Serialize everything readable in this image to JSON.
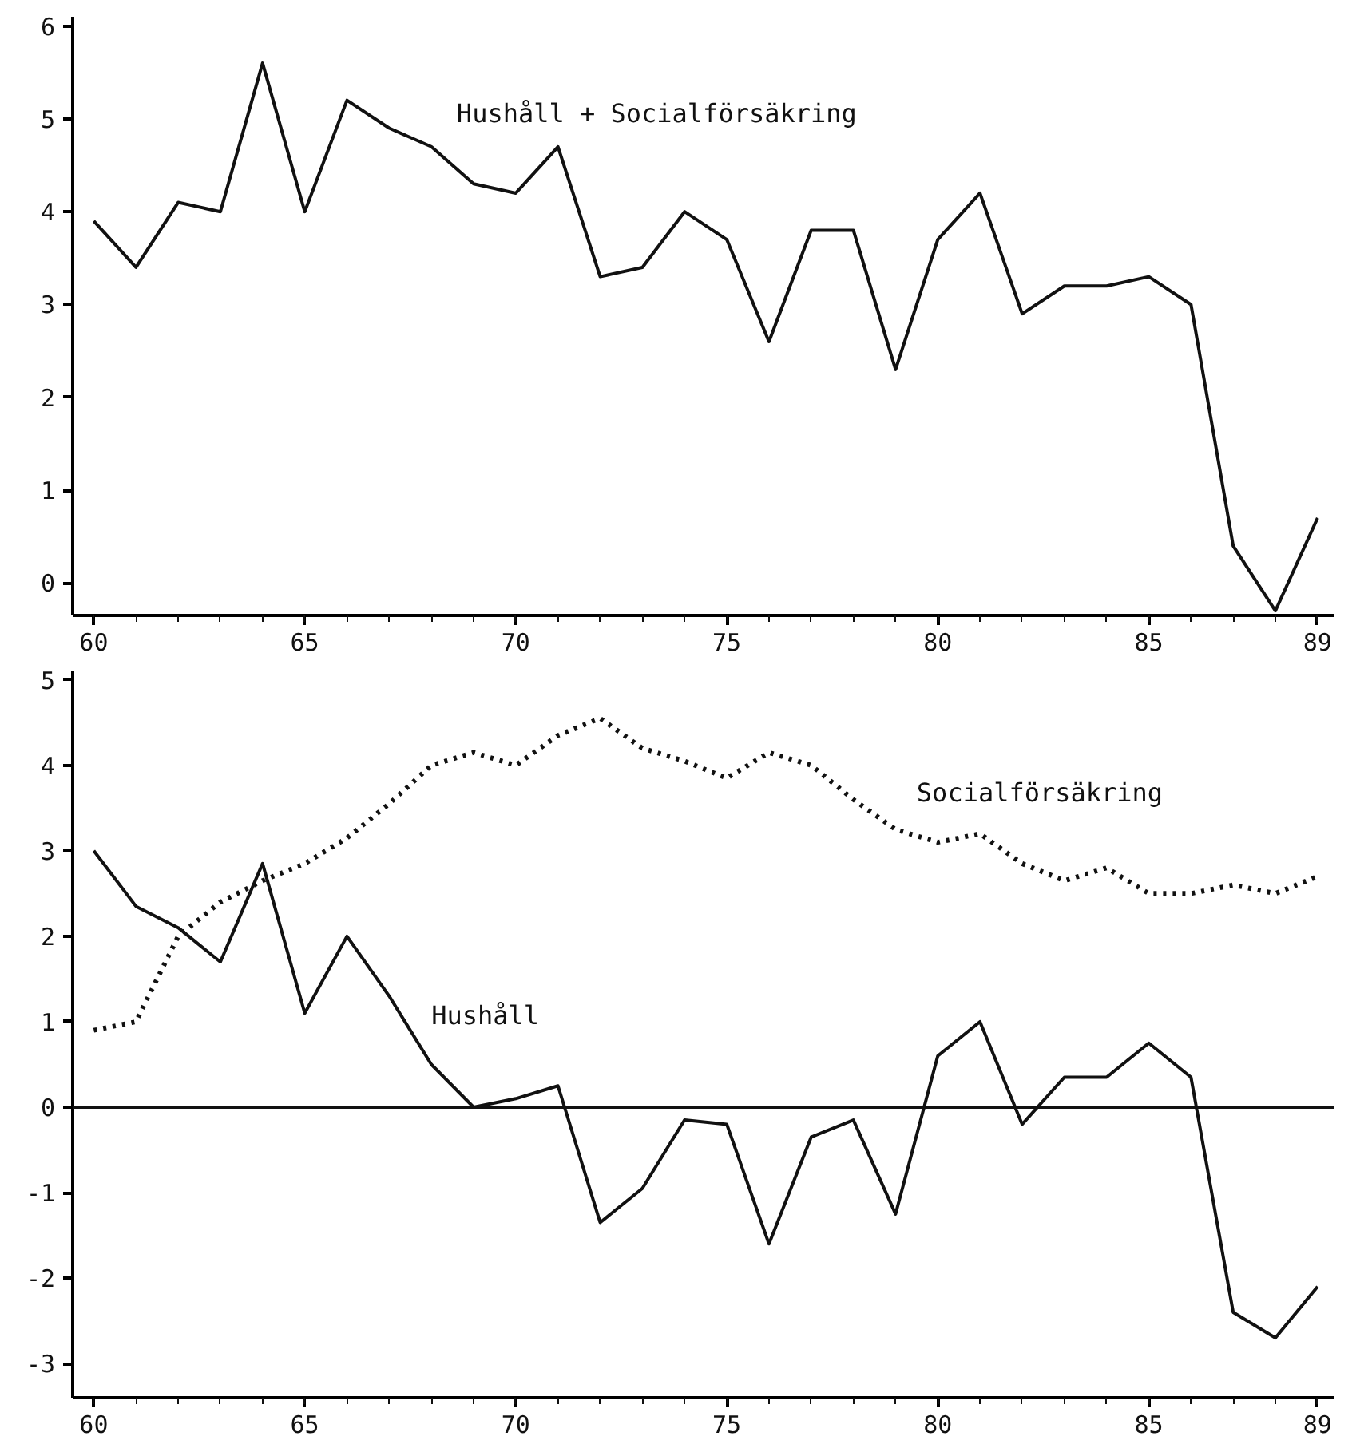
{
  "chart_data": [
    {
      "type": "line",
      "x": [
        60,
        61,
        62,
        63,
        64,
        65,
        66,
        67,
        68,
        69,
        70,
        71,
        72,
        73,
        74,
        75,
        76,
        77,
        78,
        79,
        80,
        81,
        82,
        83,
        84,
        85,
        86,
        87,
        88,
        89
      ],
      "xlim": [
        59.5,
        89.4
      ],
      "xticks": [
        60,
        65,
        70,
        75,
        80,
        85,
        89
      ],
      "ylim": [
        -0.35,
        6.1
      ],
      "yticks": [
        0,
        1,
        2,
        3,
        4,
        5,
        6
      ],
      "grid": false,
      "series": [
        {
          "name": "Hushåll + Socialförsäkring",
          "color": "#111111",
          "line_style": "solid",
          "values": [
            3.9,
            3.4,
            4.1,
            4.0,
            5.6,
            4.0,
            5.2,
            4.9,
            4.7,
            4.3,
            4.2,
            4.7,
            3.3,
            3.4,
            4.0,
            3.7,
            2.6,
            3.8,
            3.8,
            2.3,
            3.7,
            4.2,
            2.9,
            3.2,
            3.2,
            3.3,
            3.0,
            0.4,
            -0.3,
            0.7
          ]
        }
      ]
    },
    {
      "type": "line",
      "x": [
        60,
        61,
        62,
        63,
        64,
        65,
        66,
        67,
        68,
        69,
        70,
        71,
        72,
        73,
        74,
        75,
        76,
        77,
        78,
        79,
        80,
        81,
        82,
        83,
        84,
        85,
        86,
        87,
        88,
        89
      ],
      "xlim": [
        59.5,
        89.4
      ],
      "xticks": [
        60,
        65,
        70,
        75,
        80,
        85,
        89
      ],
      "ylim": [
        -3.4,
        5.1
      ],
      "yticks": [
        -3,
        -2,
        -1,
        0,
        1,
        2,
        3,
        4,
        5
      ],
      "grid": false,
      "ref_lines": [
        {
          "axis": "y",
          "value": 0,
          "label": null
        }
      ],
      "series": [
        {
          "name": "Socialförsäkring",
          "color": "#111111",
          "line_style": "dotted",
          "values": [
            0.9,
            1.0,
            2.0,
            2.4,
            2.65,
            2.85,
            3.15,
            3.55,
            4.0,
            4.15,
            4.0,
            4.35,
            4.55,
            4.2,
            4.05,
            3.85,
            4.15,
            4.0,
            3.6,
            3.25,
            3.1,
            3.2,
            2.85,
            2.65,
            2.8,
            2.5,
            2.5,
            2.6,
            2.5,
            2.7
          ]
        },
        {
          "name": "Hushåll",
          "color": "#111111",
          "line_style": "solid",
          "values": [
            3.0,
            2.35,
            2.1,
            1.7,
            2.85,
            1.1,
            2.0,
            1.3,
            0.5,
            0.0,
            0.1,
            0.25,
            -1.35,
            -0.95,
            -0.15,
            -0.2,
            -1.6,
            -0.35,
            -0.15,
            -1.25,
            0.6,
            1.0,
            -0.2,
            0.35,
            0.35,
            0.75,
            0.35,
            -2.4,
            -2.7,
            -2.1
          ]
        }
      ]
    }
  ]
}
